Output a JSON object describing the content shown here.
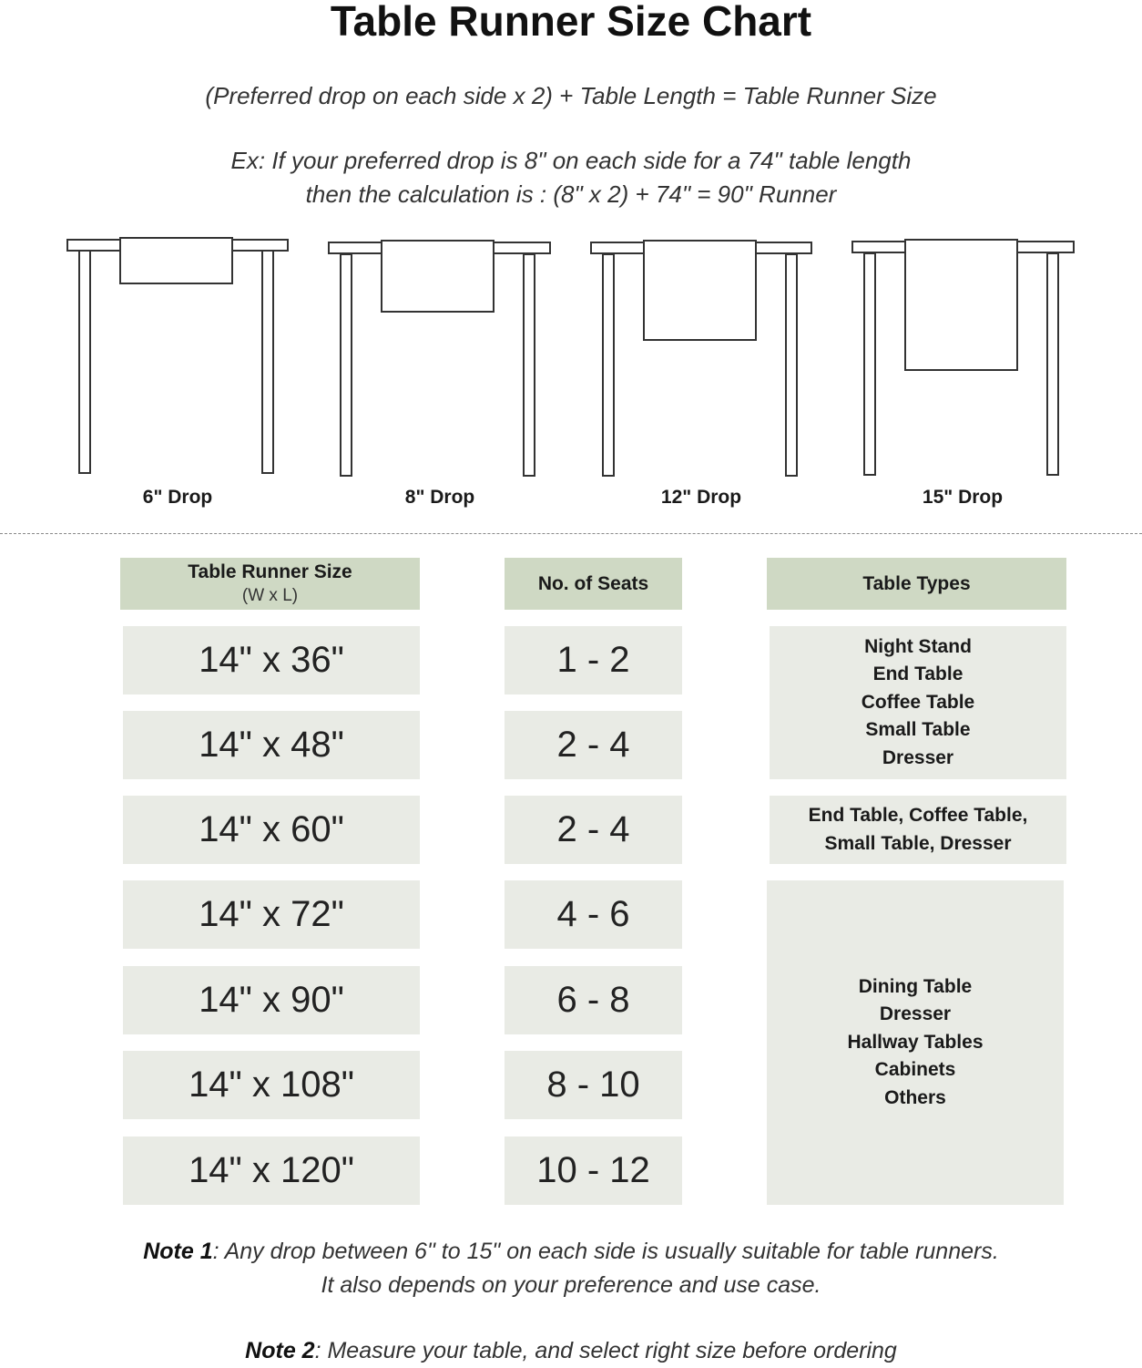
{
  "title": "Table Runner Size Chart",
  "formula": "(Preferred drop on each side x 2) + Table Length = Table Runner Size",
  "example": {
    "line1": "Ex: If your preferred drop is 8\" on each side for a 74\" table length",
    "line2": "then the calculation is : (8\" x 2) + 74\" = 90\" Runner"
  },
  "drops": [
    {
      "label": "6\" Drop",
      "inches": 6
    },
    {
      "label": "8\" Drop",
      "inches": 8
    },
    {
      "label": "12\" Drop",
      "inches": 12
    },
    {
      "label": "15\" Drop",
      "inches": 15
    }
  ],
  "table": {
    "headers": {
      "size": "Table Runner Size",
      "size_sub": "(W x L)",
      "seats": "No. of Seats",
      "types": "Table Types"
    },
    "rows": [
      {
        "size": "14\" x 36\"",
        "seats": "1 - 2"
      },
      {
        "size": "14\" x 48\"",
        "seats": "2 - 4"
      },
      {
        "size": "14\" x 60\"",
        "seats": "2 - 4"
      },
      {
        "size": "14\" x 72\"",
        "seats": "4 - 6"
      },
      {
        "size": "14\" x 90\"",
        "seats": "6 - 8"
      },
      {
        "size": "14\" x 108\"",
        "seats": "8 - 10"
      },
      {
        "size": "14\" x 120\"",
        "seats": "10 - 12"
      }
    ],
    "type_groups": [
      [
        "Night Stand",
        "End Table",
        "Coffee Table",
        "Small Table",
        "Dresser"
      ],
      [
        "End Table, Coffee Table,",
        "Small Table, Dresser"
      ],
      [
        "Dining Table",
        "Dresser",
        "Hallway Tables",
        "Cabinets",
        "Others"
      ]
    ]
  },
  "notes": {
    "note1_label": "Note 1",
    "note1_line1": ": Any drop between 6\" to 15\" on each side is usually suitable for table runners.",
    "note1_line2": "It also depends on your preference and use case.",
    "note2_label": "Note 2",
    "note2_text": ": Measure your table, and select right size before ordering"
  },
  "colors": {
    "header": "#cfd9c4",
    "cell": "#e9ebe5"
  }
}
